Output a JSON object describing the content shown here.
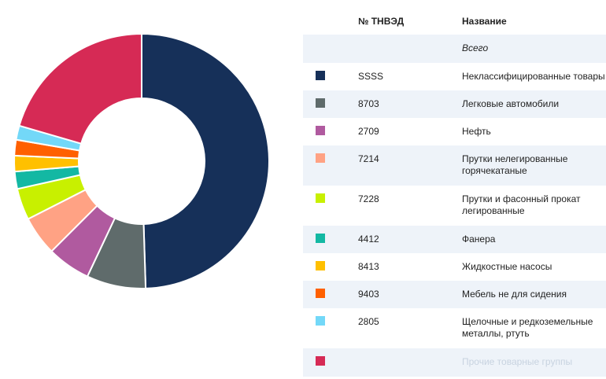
{
  "table": {
    "headers": {
      "code": "№ ТНВЭД",
      "name": "Название"
    },
    "total_label": "Всего",
    "rows": [
      {
        "code": "SSSS",
        "name": "Неклассифицированные товары",
        "color": "#163059"
      },
      {
        "code": "8703",
        "name": "Легковые автомобили",
        "color": "#5f6b6b"
      },
      {
        "code": "2709",
        "name": "Нефть",
        "color": "#b05a9f"
      },
      {
        "code": "7214",
        "name": "Прутки нелегированные горячекатаные",
        "color": "#ffa284"
      },
      {
        "code": "7228",
        "name": "Прутки и фасонный прокат легированные",
        "color": "#c8f000"
      },
      {
        "code": "4412",
        "name": "Фанера",
        "color": "#13b8a3"
      },
      {
        "code": "8413",
        "name": "Жидкостные насосы",
        "color": "#ffc000"
      },
      {
        "code": "9403",
        "name": "Мебель не для сидения",
        "color": "#ff6000"
      },
      {
        "code": "2805",
        "name": "Щелочные и редкоземельные металлы, ртуть",
        "color": "#73d8f8"
      },
      {
        "code": "",
        "name": "Прочие товарные группы",
        "color": "#d62a55"
      }
    ]
  },
  "chart_data": {
    "type": "pie",
    "donut": true,
    "categories": [
      "Неклассифицированные товары",
      "Легковые автомобили",
      "Нефть",
      "Прутки нелегированные горячекатаные",
      "Прутки и фасонный прокат легированные",
      "Фанера",
      "Жидкостные насосы",
      "Мебель не для сидения",
      "Щелочные и редкоземельные металлы, ртуть",
      "Прочие товарные группы"
    ],
    "values": [
      49.5,
      7.5,
      5.5,
      5.0,
      4.0,
      2.2,
      2.0,
      2.0,
      1.8,
      20.5
    ],
    "colors": [
      "#163059",
      "#5f6b6b",
      "#b05a9f",
      "#ffa284",
      "#c8f000",
      "#13b8a3",
      "#ffc000",
      "#ff6000",
      "#73d8f8",
      "#d62a55"
    ],
    "unit": "%"
  }
}
